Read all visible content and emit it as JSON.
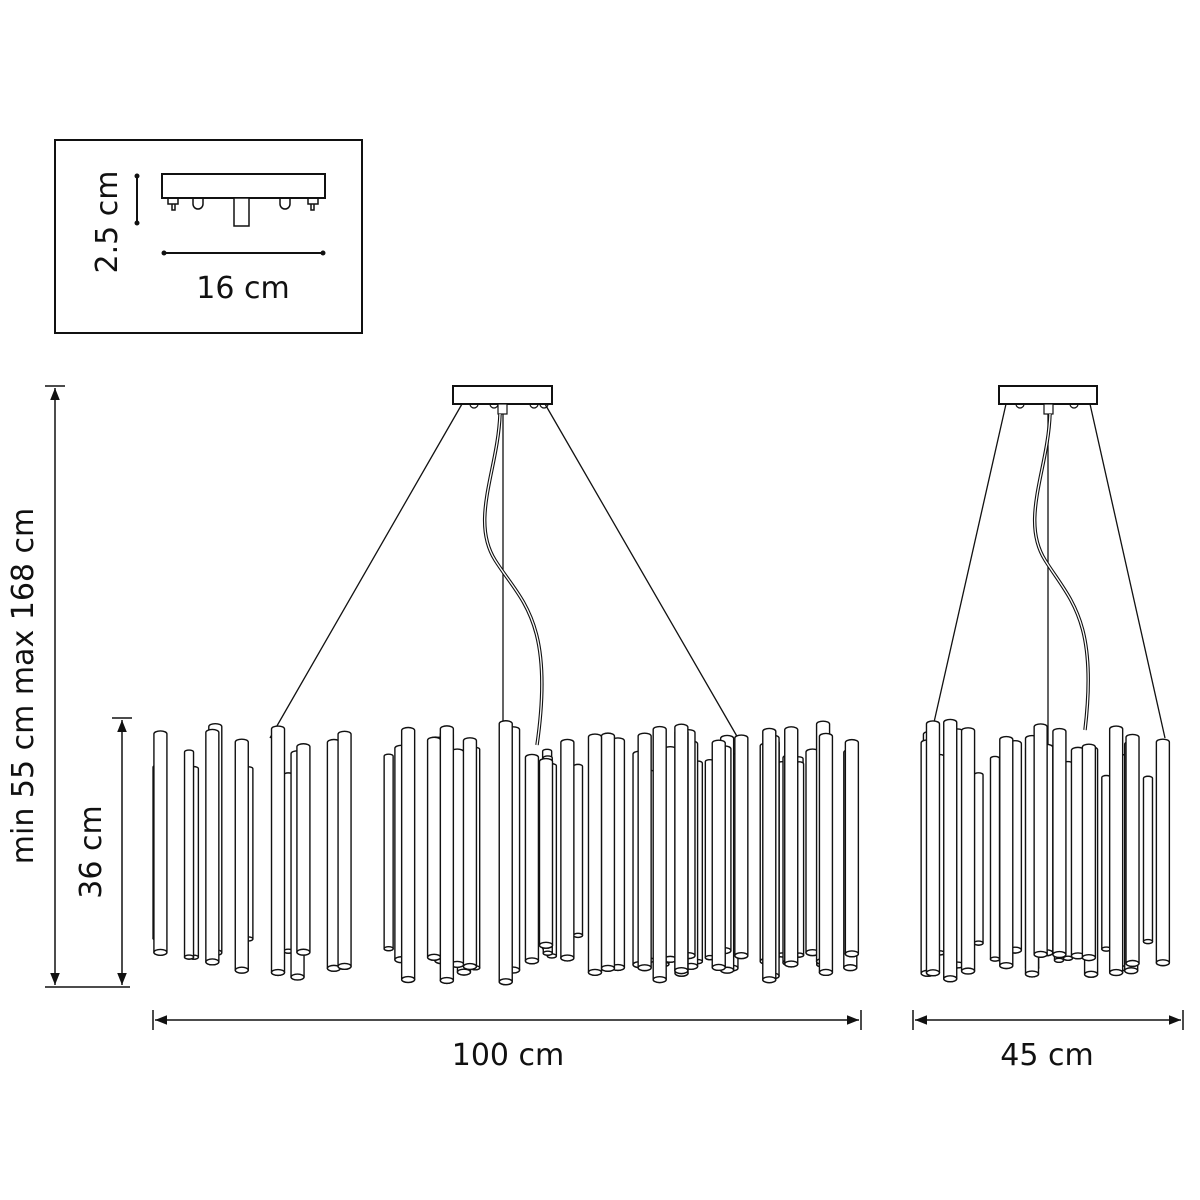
{
  "inset": {
    "height_label": "2.5 cm",
    "width_label": "16 cm"
  },
  "dimensions": {
    "total_height_label": "min 55 cm max 168 cm",
    "body_height_label": "36 cm",
    "front_width_label": "100 cm",
    "side_width_label": "45 cm"
  },
  "colors": {
    "line": "#111111",
    "background": "#ffffff"
  }
}
